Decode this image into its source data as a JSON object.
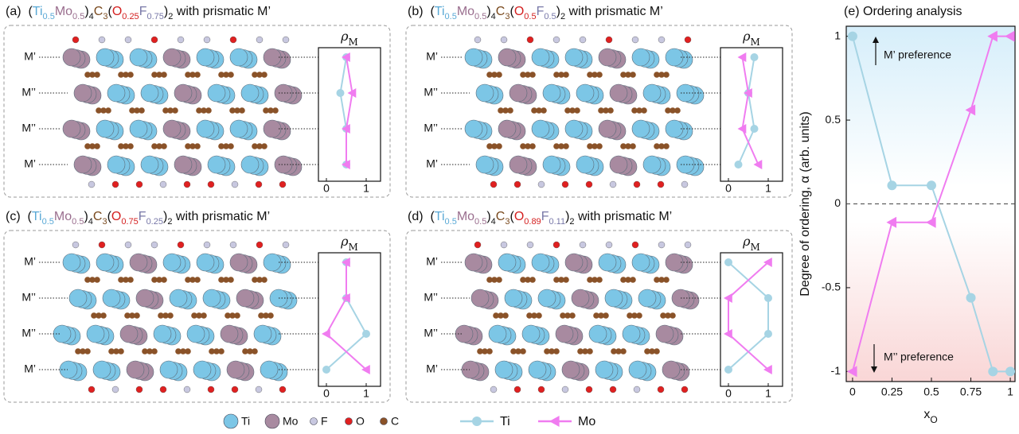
{
  "panels": [
    {
      "label": "(a)",
      "title": [
        {
          "text": "("
        },
        {
          "text": "Ti",
          "color": "#5aa9d6"
        },
        {
          "text": "0.5",
          "color": "#5aa9d6",
          "sub": true
        },
        {
          "text": "Mo",
          "color": "#9a6e8e"
        },
        {
          "text": "0.5",
          "color": "#9a6e8e",
          "sub": true
        },
        {
          "text": ")"
        },
        {
          "text": "4",
          "sub": true
        },
        {
          "text": "C",
          "color": "#7a4a1e"
        },
        {
          "text": "3",
          "color": "#7a4a1e",
          "sub": true
        },
        {
          "text": "("
        },
        {
          "text": "O",
          "color": "#d42020"
        },
        {
          "text": "0.25",
          "color": "#d42020",
          "sub": true
        },
        {
          "text": "F",
          "color": "#7878a8"
        },
        {
          "text": "0.75",
          "color": "#7878a8",
          "sub": true
        },
        {
          "text": ")"
        },
        {
          "text": "2",
          "sub": true
        },
        {
          "text": " with prismatic M’"
        }
      ]
    },
    {
      "label": "(b)",
      "title": [
        {
          "text": "("
        },
        {
          "text": "Ti",
          "color": "#5aa9d6"
        },
        {
          "text": "0.5",
          "color": "#5aa9d6",
          "sub": true
        },
        {
          "text": "Mo",
          "color": "#9a6e8e"
        },
        {
          "text": "0.5",
          "color": "#9a6e8e",
          "sub": true
        },
        {
          "text": ")"
        },
        {
          "text": "4",
          "sub": true
        },
        {
          "text": "C",
          "color": "#7a4a1e"
        },
        {
          "text": "3",
          "color": "#7a4a1e",
          "sub": true
        },
        {
          "text": "("
        },
        {
          "text": "O",
          "color": "#d42020"
        },
        {
          "text": "0.5",
          "color": "#d42020",
          "sub": true
        },
        {
          "text": "F",
          "color": "#7878a8"
        },
        {
          "text": "0.5",
          "color": "#7878a8",
          "sub": true
        },
        {
          "text": ")"
        },
        {
          "text": "2",
          "sub": true
        },
        {
          "text": " with prismatic M’"
        }
      ]
    },
    {
      "label": "(c)",
      "title": [
        {
          "text": "("
        },
        {
          "text": "Ti",
          "color": "#5aa9d6"
        },
        {
          "text": "0.5",
          "color": "#5aa9d6",
          "sub": true
        },
        {
          "text": "Mo",
          "color": "#9a6e8e"
        },
        {
          "text": "0.5",
          "color": "#9a6e8e",
          "sub": true
        },
        {
          "text": ")"
        },
        {
          "text": "4",
          "sub": true
        },
        {
          "text": "C",
          "color": "#7a4a1e"
        },
        {
          "text": "3",
          "color": "#7a4a1e",
          "sub": true
        },
        {
          "text": "("
        },
        {
          "text": "O",
          "color": "#d42020"
        },
        {
          "text": "0.75",
          "color": "#d42020",
          "sub": true
        },
        {
          "text": "F",
          "color": "#7878a8"
        },
        {
          "text": "0.25",
          "color": "#7878a8",
          "sub": true
        },
        {
          "text": ")"
        },
        {
          "text": "2",
          "sub": true
        },
        {
          "text": " with prismatic M’"
        }
      ]
    },
    {
      "label": "(d)",
      "title": [
        {
          "text": "("
        },
        {
          "text": "Ti",
          "color": "#5aa9d6"
        },
        {
          "text": "0.5",
          "color": "#5aa9d6",
          "sub": true
        },
        {
          "text": "Mo",
          "color": "#9a6e8e"
        },
        {
          "text": "0.5",
          "color": "#9a6e8e",
          "sub": true
        },
        {
          "text": ")"
        },
        {
          "text": "4",
          "sub": true
        },
        {
          "text": "C",
          "color": "#7a4a1e"
        },
        {
          "text": "3",
          "color": "#7a4a1e",
          "sub": true
        },
        {
          "text": "("
        },
        {
          "text": "O",
          "color": "#d42020"
        },
        {
          "text": "0.89",
          "color": "#d42020",
          "sub": true
        },
        {
          "text": "F",
          "color": "#7878a8"
        },
        {
          "text": "0.11",
          "color": "#7878a8",
          "sub": true
        },
        {
          "text": ")"
        },
        {
          "text": "2",
          "sub": true
        },
        {
          "text": " with prismatic M’"
        }
      ]
    }
  ],
  "atom_legend": [
    {
      "name": "Ti",
      "color": "#7cc6e6"
    },
    {
      "name": "Mo",
      "color": "#a88aa0"
    },
    {
      "name": "F",
      "color": "#c8c8e0"
    },
    {
      "name": "O",
      "color": "#e02020"
    },
    {
      "name": "C",
      "color": "#8a5228"
    }
  ],
  "chart_data": [
    {
      "type": "profile",
      "title": "ρ",
      "title_sub": "M",
      "categories": [
        "M’",
        "M’’",
        "M’’",
        "M’"
      ],
      "xlim": [
        -0.2,
        1.36
      ],
      "xticks": [
        0,
        1
      ],
      "series": [
        {
          "name": "Ti",
          "color": "#a6d4e4",
          "values": [
            0.5,
            0.35,
            0.5,
            0.5
          ]
        },
        {
          "name": "Mo",
          "color": "#f07cf0",
          "values": [
            0.5,
            0.65,
            0.5,
            0.5
          ]
        }
      ]
    },
    {
      "type": "profile",
      "title": "ρ",
      "title_sub": "M",
      "categories": [
        "M’",
        "M’’",
        "M’’",
        "M’"
      ],
      "xlim": [
        -0.2,
        1.36
      ],
      "xticks": [
        0,
        1
      ],
      "series": [
        {
          "name": "Ti",
          "color": "#a6d4e4",
          "values": [
            0.65,
            0.5,
            0.65,
            0.25
          ]
        },
        {
          "name": "Mo",
          "color": "#f07cf0",
          "values": [
            0.35,
            0.5,
            0.35,
            0.75
          ]
        }
      ]
    },
    {
      "type": "profile",
      "title": "ρ",
      "title_sub": "M",
      "categories": [
        "M’",
        "M’’",
        "M’’",
        "M’"
      ],
      "xlim": [
        -0.2,
        1.36
      ],
      "xticks": [
        0,
        1
      ],
      "series": [
        {
          "name": "Ti",
          "color": "#a6d4e4",
          "values": [
            0.5,
            0.5,
            1,
            0
          ]
        },
        {
          "name": "Mo",
          "color": "#f07cf0",
          "values": [
            0.5,
            0.5,
            0,
            1
          ]
        }
      ]
    },
    {
      "type": "profile",
      "title": "ρ",
      "title_sub": "M",
      "categories": [
        "M’",
        "M’’",
        "M’’",
        "M’"
      ],
      "xlim": [
        -0.2,
        1.36
      ],
      "xticks": [
        0,
        1
      ],
      "series": [
        {
          "name": "Ti",
          "color": "#a6d4e4",
          "values": [
            0,
            1,
            1,
            0
          ]
        },
        {
          "name": "Mo",
          "color": "#f07cf0",
          "values": [
            1,
            0,
            0,
            1
          ]
        }
      ]
    },
    {
      "type": "line",
      "title": "(e) Ordering analysis",
      "ylabel": "Degree of ordering, α (arb. units)",
      "xlabel": "x",
      "xlabel_sub": "O",
      "x": [
        0,
        0.25,
        0.5,
        0.75,
        0.89,
        1
      ],
      "xlim": [
        -0.04,
        1.03
      ],
      "xticks": [
        0,
        0.25,
        0.5,
        0.75,
        1
      ],
      "ylim": [
        -1.06,
        1.06
      ],
      "yticks": [
        1,
        0.5,
        0,
        -0.5,
        -1
      ],
      "annotations": [
        "M’ preference",
        "M’’ preference"
      ],
      "series": [
        {
          "name": "Ti",
          "color": "#a6d4e4",
          "values": [
            1,
            0.11,
            0.11,
            -0.56,
            -1,
            -1
          ]
        },
        {
          "name": "Mo",
          "color": "#f07cf0",
          "values": [
            -1,
            -0.11,
            -0.11,
            0.56,
            1,
            1
          ]
        }
      ]
    }
  ]
}
